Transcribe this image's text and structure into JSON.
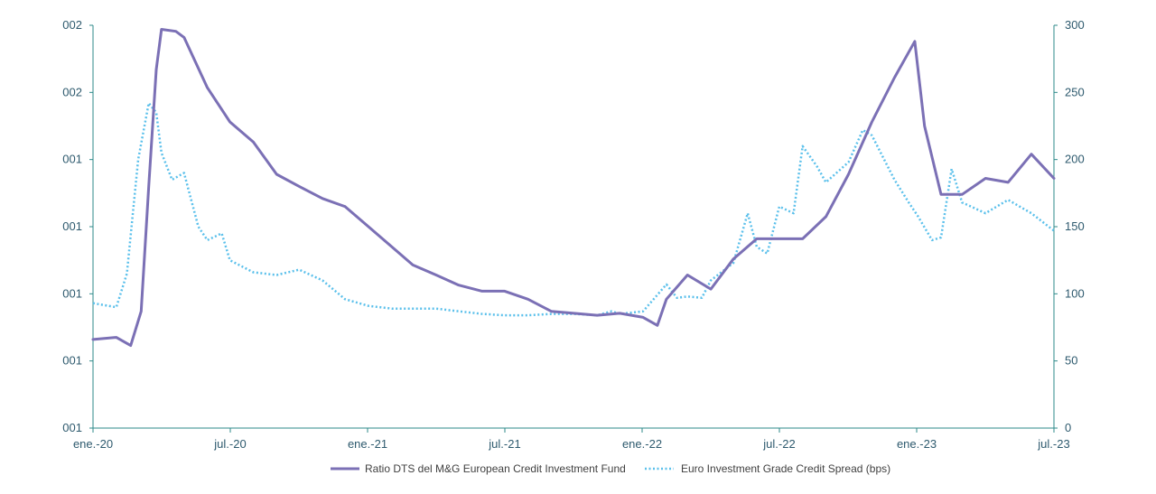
{
  "colors": {
    "axis": "#2e8a8a",
    "text": "#2e5a6e",
    "fund": "#7b70b5",
    "spread": "#5bc0eb"
  },
  "chart_data": {
    "type": "line",
    "x_ticks": [
      "ene.-20",
      "jul.-20",
      "ene.-21",
      "jul.-21",
      "ene.-22",
      "jul.-22",
      "ene.-23",
      "jul.-23"
    ],
    "xlim": [
      "2020-01",
      "2023-07"
    ],
    "y_left_ticks": [
      "001",
      "001",
      "001",
      "001",
      "001",
      "002",
      "002"
    ],
    "y_right_ticks": [
      "0",
      "50",
      "100",
      "150",
      "200",
      "250",
      "300"
    ],
    "y_right_lim": [
      0,
      300
    ],
    "legend_position": "bottom",
    "series": [
      {
        "name": "Ratio DTS del M&G European Credit Investment Fund",
        "axis": "left",
        "style": "solid",
        "x": [
          "2020-01",
          "2020-02",
          "2020-02-20",
          "2020-03-05",
          "2020-03-15",
          "2020-03-25",
          "2020-04",
          "2020-04-20",
          "2020-05",
          "2020-06",
          "2020-07",
          "2020-08",
          "2020-09",
          "2020-10",
          "2020-11",
          "2020-12",
          "2021-01",
          "2021-02",
          "2021-03",
          "2021-04",
          "2021-05",
          "2021-06",
          "2021-07",
          "2021-08",
          "2021-09",
          "2021-10",
          "2021-11",
          "2021-12",
          "2022-01",
          "2022-01-20",
          "2022-02",
          "2022-03",
          "2022-04",
          "2022-05",
          "2022-06",
          "2022-07",
          "2022-08",
          "2022-09",
          "2022-10",
          "2022-11",
          "2022-12",
          "2022-12-28",
          "2023-01-10",
          "2023-02",
          "2023-03",
          "2023-04",
          "2023-05",
          "2023-06",
          "2023-07"
        ],
        "values": [
          1.22,
          1.225,
          1.205,
          1.29,
          1.6,
          1.89,
          1.99,
          1.985,
          1.97,
          1.845,
          1.76,
          1.71,
          1.63,
          1.6,
          1.57,
          1.55,
          1.5,
          1.45,
          1.405,
          1.38,
          1.355,
          1.34,
          1.34,
          1.32,
          1.29,
          1.285,
          1.28,
          1.285,
          1.275,
          1.255,
          1.32,
          1.38,
          1.345,
          1.42,
          1.47,
          1.47,
          1.47,
          1.525,
          1.63,
          1.76,
          1.87,
          1.96,
          1.75,
          1.58,
          1.58,
          1.62,
          1.61,
          1.68,
          1.62
        ]
      },
      {
        "name": "Euro Investment Grade Credit Spread  (bps)",
        "axis": "right",
        "style": "dotted",
        "x": [
          "2020-01",
          "2020-02",
          "2020-02-15",
          "2020-03-01",
          "2020-03-15",
          "2020-03-25",
          "2020-04",
          "2020-04-15",
          "2020-05",
          "2020-05-20",
          "2020-06",
          "2020-06-20",
          "2020-07",
          "2020-08",
          "2020-09",
          "2020-10",
          "2020-11",
          "2020-12",
          "2021-01",
          "2021-02",
          "2021-03",
          "2021-04",
          "2021-05",
          "2021-06",
          "2021-07",
          "2021-08",
          "2021-09",
          "2021-10",
          "2021-11",
          "2021-11-20",
          "2021-12",
          "2022-01",
          "2022-02",
          "2022-02-15",
          "2022-03",
          "2022-03-20",
          "2022-04",
          "2022-05",
          "2022-05-20",
          "2022-06",
          "2022-06-15",
          "2022-07",
          "2022-07-20",
          "2022-08",
          "2022-08-20",
          "2022-09",
          "2022-10",
          "2022-10-20",
          "2022-11",
          "2022-12",
          "2022-12-20",
          "2023-01",
          "2023-01-20",
          "2023-02",
          "2023-02-15",
          "2023-03",
          "2023-04",
          "2023-05",
          "2023-06",
          "2023-07"
        ],
        "values": [
          93,
          90,
          115,
          200,
          242,
          235,
          205,
          185,
          190,
          150,
          140,
          145,
          125,
          116,
          114,
          118,
          110,
          96,
          91,
          89,
          89,
          89,
          87,
          85,
          84,
          84,
          85,
          85,
          84,
          87,
          85,
          87,
          107,
          97,
          98,
          97,
          110,
          123,
          160,
          135,
          130,
          165,
          160,
          210,
          195,
          183,
          198,
          222,
          218,
          185,
          168,
          158,
          140,
          142,
          193,
          168,
          160,
          170,
          160,
          147
        ]
      }
    ]
  }
}
